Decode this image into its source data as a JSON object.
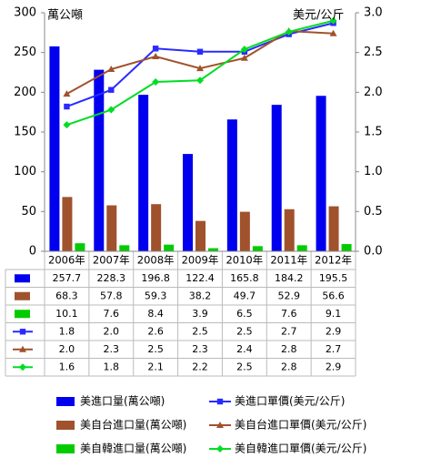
{
  "chart_data": {
    "type": "bar",
    "categories": [
      "2006年",
      "2007年",
      "2008年",
      "2009年",
      "2010年",
      "2011年",
      "2012年"
    ],
    "left_axis": {
      "unit": "萬公噸",
      "ylim": [
        0,
        300
      ],
      "ticks": [
        "0",
        "50",
        "100",
        "150",
        "200",
        "250",
        "300"
      ]
    },
    "right_axis": {
      "unit": "美元/公斤",
      "ylim": [
        0,
        3.0
      ],
      "ticks": [
        "0.0",
        "0.5",
        "1.0",
        "1.5",
        "2.0",
        "2.5",
        "3.0"
      ]
    },
    "grid": false,
    "legend": "bottom",
    "series": [
      {
        "name": "美進口量(萬公噸)",
        "kind": "bar",
        "axis": "left",
        "color": "#0000ee",
        "values": [
          257.7,
          228.3,
          196.8,
          122.4,
          165.8,
          184.2,
          195.5
        ],
        "labels": [
          "257.7",
          "228.3",
          "196.8",
          "122.4",
          "165.8",
          "184.2",
          "195.5"
        ]
      },
      {
        "name": "美自台進口量(萬公噸)",
        "kind": "bar",
        "axis": "left",
        "color": "#a0522d",
        "values": [
          68.3,
          57.8,
          59.3,
          38.2,
          49.7,
          52.9,
          56.6
        ],
        "labels": [
          "68.3",
          "57.8",
          "59.3",
          "38.2",
          "49.7",
          "52.9",
          "56.6"
        ]
      },
      {
        "name": "美自韓進口量(萬公噸)",
        "kind": "bar",
        "axis": "left",
        "color": "#00cc00",
        "values": [
          10.1,
          7.6,
          8.4,
          3.9,
          6.5,
          7.6,
          9.1
        ],
        "labels": [
          "10.1",
          "7.6",
          "8.4",
          "3.9",
          "6.5",
          "7.6",
          "9.1"
        ]
      },
      {
        "name": "美進口單價(美元/公斤)",
        "kind": "line",
        "axis": "right",
        "color": "#2a2aff",
        "marker": "square",
        "values": [
          1.82,
          2.03,
          2.55,
          2.51,
          2.51,
          2.73,
          2.87
        ],
        "labels": [
          "1.8",
          "2.0",
          "2.6",
          "2.5",
          "2.5",
          "2.7",
          "2.9"
        ]
      },
      {
        "name": "美自台進口單價(美元/公斤)",
        "kind": "line",
        "axis": "right",
        "color": "#a0522d",
        "marker": "triangle",
        "values": [
          1.98,
          2.29,
          2.45,
          2.3,
          2.43,
          2.77,
          2.74
        ],
        "labels": [
          "2.0",
          "2.3",
          "2.5",
          "2.3",
          "2.4",
          "2.8",
          "2.7"
        ]
      },
      {
        "name": "美自韓進口單價(美元/公斤)",
        "kind": "line",
        "axis": "right",
        "color": "#00dd22",
        "marker": "diamond",
        "values": [
          1.59,
          1.78,
          2.13,
          2.15,
          2.54,
          2.76,
          2.9
        ],
        "labels": [
          "1.6",
          "1.8",
          "2.1",
          "2.2",
          "2.5",
          "2.8",
          "2.9"
        ]
      }
    ]
  }
}
